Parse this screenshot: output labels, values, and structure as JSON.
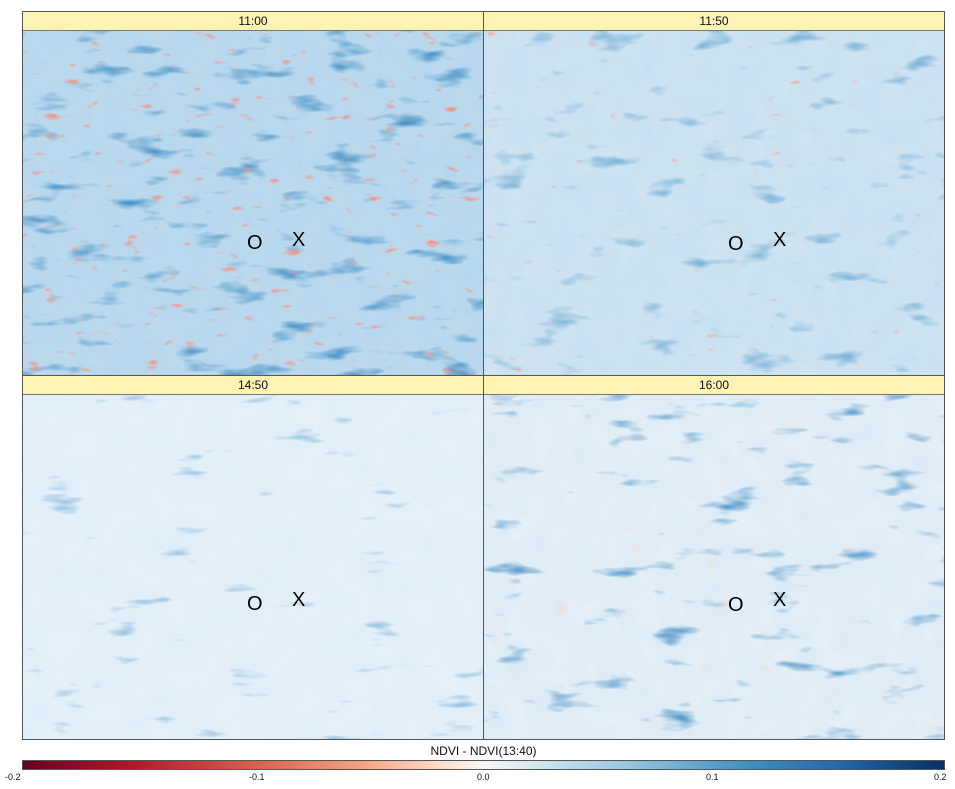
{
  "panels": [
    {
      "id": "p1",
      "label": "11:00",
      "o_marker": "O",
      "x_marker": "X",
      "intensity": "high"
    },
    {
      "id": "p2",
      "label": "11:50",
      "o_marker": "O",
      "x_marker": "X",
      "intensity": "medium"
    },
    {
      "id": "p3",
      "label": "14:50",
      "o_marker": "O",
      "x_marker": "X",
      "intensity": "low"
    },
    {
      "id": "p4",
      "label": "16:00",
      "o_marker": "O",
      "x_marker": "X",
      "intensity": "medium-high"
    }
  ],
  "colorbar": {
    "title": "NDVI - NDVI(13:40)",
    "ticks": [
      "-0.2",
      "-0.1",
      "0.0",
      "0.1",
      "0.2"
    ],
    "colors": {
      "min": "#67001f",
      "mid": "#f7f7f7",
      "max": "#053061"
    }
  }
}
